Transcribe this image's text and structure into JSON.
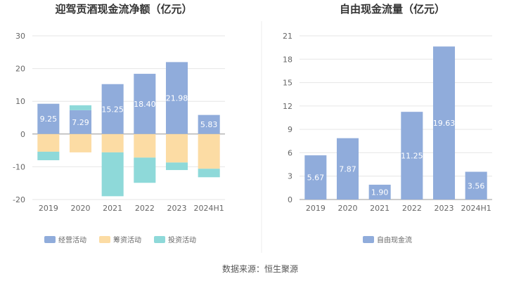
{
  "footer": {
    "source": "数据来源：恒生聚源"
  },
  "colors": {
    "operating": "#90acdb",
    "financing": "#fcdca4",
    "investing": "#8ed9d9",
    "free_cash_flow": "#90acdb",
    "grid": "#e6e6e6",
    "axis": "#999999",
    "divider": "#eeeeee"
  },
  "chart_data": [
    {
      "type": "bar",
      "stacked": true,
      "title": "迎驾贡酒现金流净额（亿元）",
      "categories": [
        "2019",
        "2020",
        "2021",
        "2022",
        "2023",
        "2024H1"
      ],
      "ylim": [
        -20,
        30
      ],
      "yticks": [
        30,
        20,
        10,
        0,
        -10,
        -20
      ],
      "grid": true,
      "legend_position": "bottom",
      "series": [
        {
          "name": "经营活动",
          "key": "operating",
          "values": [
            9.25,
            7.29,
            15.25,
            18.4,
            21.98,
            5.83
          ],
          "labels": [
            "9.25",
            "7.29",
            "15.25",
            "18.40",
            "21.98",
            "5.83"
          ]
        },
        {
          "name": "筹资活动",
          "key": "financing",
          "values": [
            -5.4,
            -5.6,
            -5.6,
            -7.2,
            -8.7,
            -10.6
          ]
        },
        {
          "name": "投资活动",
          "key": "investing",
          "values": [
            -2.6,
            1.5,
            -13.4,
            -7.7,
            -2.3,
            -2.6
          ]
        }
      ]
    },
    {
      "type": "bar",
      "title": "自由现金流量（亿元）",
      "categories": [
        "2019",
        "2020",
        "2021",
        "2022",
        "2023",
        "2024H1"
      ],
      "ylim": [
        0,
        21
      ],
      "yticks": [
        21,
        18,
        15,
        12,
        9,
        6,
        3,
        0
      ],
      "grid": true,
      "legend_position": "bottom",
      "series": [
        {
          "name": "自由现金流",
          "key": "free_cash_flow",
          "values": [
            5.67,
            7.87,
            1.9,
            11.25,
            19.63,
            3.56
          ],
          "labels": [
            "5.67",
            "7.87",
            "1.90",
            "11.25",
            "19.63",
            "3.56"
          ]
        }
      ]
    }
  ]
}
